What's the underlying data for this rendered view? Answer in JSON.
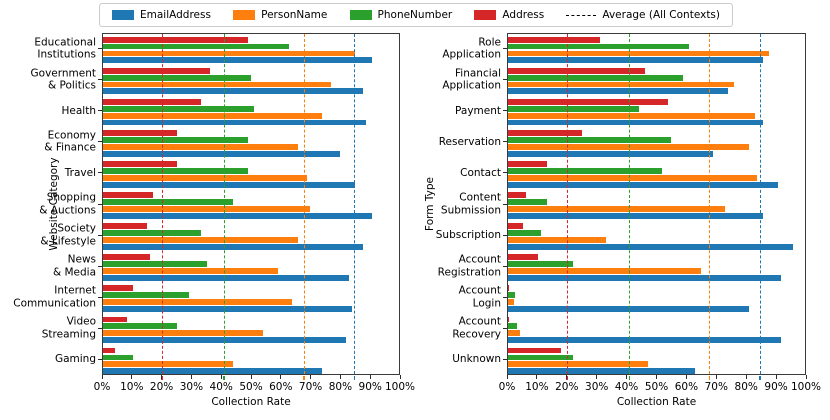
{
  "figure": {
    "legend": {
      "items": [
        {
          "label": "EmailAddress",
          "color": "#1f77b4",
          "style": "patch"
        },
        {
          "label": "PersonName",
          "color": "#ff7f0e",
          "style": "patch"
        },
        {
          "label": "PhoneNumber",
          "color": "#2ca02c",
          "style": "patch"
        },
        {
          "label": "Address",
          "color": "#d62728",
          "style": "patch"
        },
        {
          "label": "Average (All Contexts)",
          "color": "#000000",
          "style": "dashed-line"
        }
      ]
    }
  },
  "chart_data": [
    {
      "type": "bar",
      "orientation": "horizontal",
      "title": "",
      "ylabel": "Website Category",
      "xlabel": "Collection Rate",
      "xlim": [
        0,
        100
      ],
      "grid": false,
      "xtick_labels": [
        "0%",
        "10%",
        "20%",
        "30%",
        "40%",
        "50%",
        "60%",
        "70%",
        "80%",
        "90%",
        "100%"
      ],
      "categories": [
        "Educational\nInstitutions",
        "Government\n& Politics",
        "Health",
        "Economy\n& Finance",
        "Travel",
        "Shopping\n& Auctions",
        "Society\n& Lifestyle",
        "News\n& Media",
        "Internet\nCommunication",
        "Video\nStreaming",
        "Gaming"
      ],
      "series": [
        {
          "name": "EmailAddress",
          "color": "#1f77b4",
          "values": [
            91,
            88,
            89,
            80,
            85,
            91,
            88,
            83,
            84,
            82,
            74
          ]
        },
        {
          "name": "PersonName",
          "color": "#ff7f0e",
          "values": [
            85,
            77,
            74,
            66,
            69,
            70,
            66,
            59,
            64,
            54,
            44
          ]
        },
        {
          "name": "PhoneNumber",
          "color": "#2ca02c",
          "values": [
            63,
            50,
            51,
            49,
            49,
            44,
            33,
            35,
            29,
            25,
            10
          ]
        },
        {
          "name": "Address",
          "color": "#d62728",
          "values": [
            49,
            36,
            33,
            25,
            25,
            17,
            15,
            16,
            10,
            8,
            4
          ]
        }
      ],
      "average_lines": [
        {
          "name": "EmailAddress",
          "value": 85,
          "color": "#1f77b4"
        },
        {
          "name": "PersonName",
          "value": 68,
          "color": "#ff7f0e"
        },
        {
          "name": "PhoneNumber",
          "value": 41,
          "color": "#2ca02c"
        },
        {
          "name": "Address",
          "value": 20,
          "color": "#d62728"
        }
      ]
    },
    {
      "type": "bar",
      "orientation": "horizontal",
      "title": "",
      "ylabel": "Form Type",
      "xlabel": "Collection Rate",
      "xlim": [
        0,
        100
      ],
      "grid": false,
      "xtick_labels": [
        "0%",
        "10%",
        "20%",
        "30%",
        "40%",
        "50%",
        "60%",
        "70%",
        "80%",
        "90%",
        "100%"
      ],
      "categories": [
        "Role\nApplication",
        "Financial\nApplication",
        "Payment",
        "Reservation",
        "Contact",
        "Content\nSubmission",
        "Subscription",
        "Account\nRegistration",
        "Account\nLogin",
        "Account\nRecovery",
        "Unknown"
      ],
      "series": [
        {
          "name": "EmailAddress",
          "color": "#1f77b4",
          "values": [
            86,
            74,
            86,
            69,
            91,
            86,
            96,
            92,
            81,
            92,
            63
          ]
        },
        {
          "name": "PersonName",
          "color": "#ff7f0e",
          "values": [
            88,
            76,
            83,
            81,
            84,
            73,
            33,
            65,
            2,
            4,
            47
          ]
        },
        {
          "name": "PhoneNumber",
          "color": "#2ca02c",
          "values": [
            61,
            59,
            44,
            55,
            52,
            13,
            11,
            22,
            2.5,
            3,
            22
          ]
        },
        {
          "name": "Address",
          "color": "#d62728",
          "values": [
            31,
            46,
            54,
            25,
            13,
            6,
            5,
            10,
            0.5,
            0.5,
            18
          ]
        }
      ],
      "average_lines": [
        {
          "name": "EmailAddress",
          "value": 85,
          "color": "#1f77b4"
        },
        {
          "name": "PersonName",
          "value": 68,
          "color": "#ff7f0e"
        },
        {
          "name": "PhoneNumber",
          "value": 41,
          "color": "#2ca02c"
        },
        {
          "name": "Address",
          "value": 20,
          "color": "#d62728"
        }
      ]
    }
  ]
}
